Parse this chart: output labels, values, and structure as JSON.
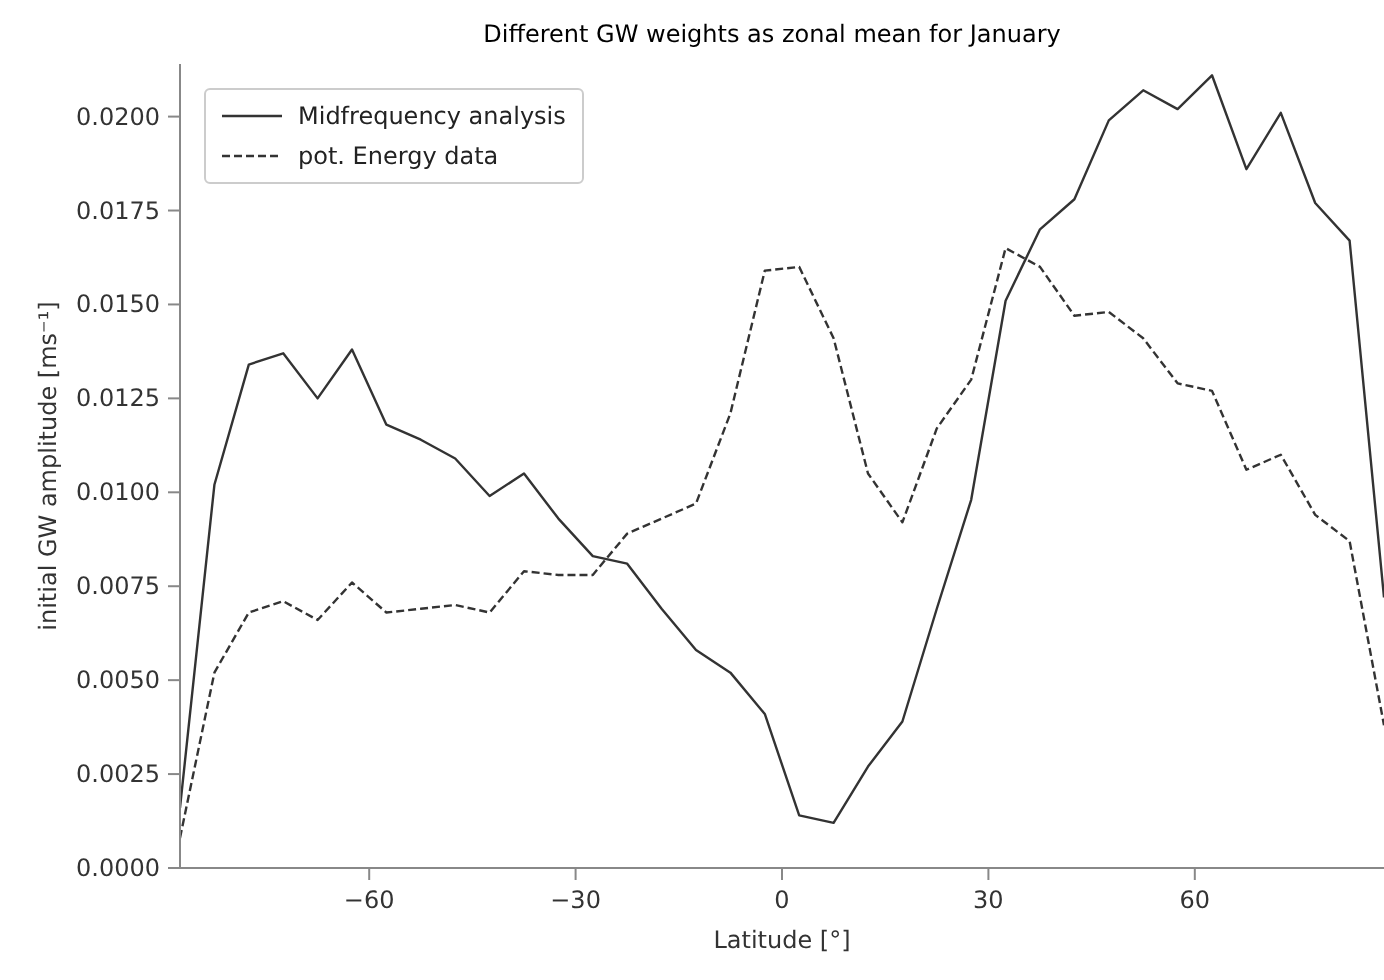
{
  "chart_data": {
    "type": "line",
    "title": "Different GW weights as zonal mean for January",
    "xlabel": "Latitude [°]",
    "ylabel": "initial GW amplitude [ms⁻¹]",
    "x": [
      -87.5,
      -82.5,
      -77.5,
      -72.5,
      -67.5,
      -62.5,
      -57.5,
      -52.5,
      -47.5,
      -42.5,
      -37.5,
      -32.5,
      -27.5,
      -22.5,
      -17.5,
      -12.5,
      -7.5,
      -2.5,
      2.5,
      7.5,
      12.5,
      17.5,
      22.5,
      27.5,
      32.5,
      37.5,
      42.5,
      47.5,
      52.5,
      57.5,
      62.5,
      67.5,
      72.5,
      77.5,
      82.5,
      87.5
    ],
    "series": [
      {
        "name": "Midfrequency analysis",
        "color": "#333333",
        "line_style": "solid",
        "values": [
          0.0016,
          0.0102,
          0.0134,
          0.0137,
          0.0125,
          0.0138,
          0.0118,
          0.0114,
          0.0109,
          0.0099,
          0.0105,
          0.0093,
          0.0083,
          0.0081,
          0.0069,
          0.0058,
          0.0052,
          0.0041,
          0.0014,
          0.0012,
          0.0027,
          0.0039,
          0.0069,
          0.0098,
          0.0151,
          0.017,
          0.0178,
          0.0199,
          0.0207,
          0.0202,
          0.0211,
          0.0186,
          0.0201,
          0.0177,
          0.0167,
          0.0072
        ]
      },
      {
        "name": "pot. Energy data",
        "color": "#333333",
        "line_style": "dashed",
        "values": [
          0.0008,
          0.0052,
          0.0068,
          0.0071,
          0.0066,
          0.0076,
          0.0068,
          0.0069,
          0.007,
          0.0068,
          0.0079,
          0.0078,
          0.0078,
          0.0089,
          0.0093,
          0.0097,
          0.0121,
          0.0159,
          0.016,
          0.0141,
          0.0105,
          0.0092,
          0.0117,
          0.013,
          0.0165,
          0.016,
          0.0147,
          0.0148,
          0.0141,
          0.0129,
          0.0127,
          0.0106,
          0.011,
          0.0094,
          0.0087,
          0.0038
        ]
      }
    ],
    "xlim": [
      -87.5,
      87.5
    ],
    "xticks": [
      {
        "value": -60,
        "label": "−60"
      },
      {
        "value": -30,
        "label": "−30"
      },
      0,
      30,
      60
    ],
    "ylim": [
      0,
      0.0214
    ],
    "yticks": [
      {
        "value": 0,
        "label": "0.0000"
      },
      {
        "value": 0.0025,
        "label": "0.0025"
      },
      {
        "value": 0.005,
        "label": "0.0050"
      },
      {
        "value": 0.0075,
        "label": "0.0075"
      },
      {
        "value": 0.01,
        "label": "0.0100"
      },
      {
        "value": 0.0125,
        "label": "0.0125"
      },
      {
        "value": 0.015,
        "label": "0.0150"
      },
      {
        "value": 0.0175,
        "label": "0.0175"
      },
      {
        "value": 0.02,
        "label": "0.0200"
      }
    ],
    "legend": "top left",
    "grid": false,
    "marker": "none"
  }
}
